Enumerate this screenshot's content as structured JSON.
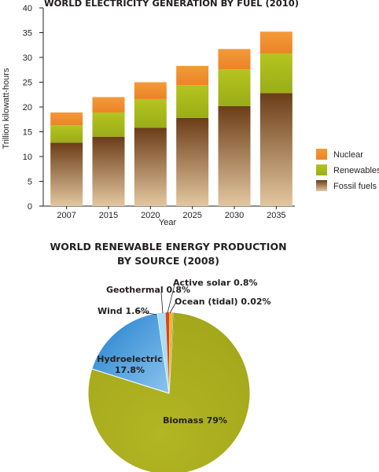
{
  "chart_data": [
    {
      "type": "bar",
      "stacked": true,
      "title": "WORLD ELECTRICITY GENERATION BY FUEL (2010)",
      "xlabel": "Year",
      "ylabel": "Trillion kilowatt-hours",
      "ylim": [
        0,
        40
      ],
      "yticks": [
        "0",
        "5",
        "10",
        "15",
        "20",
        "25",
        "30",
        "35",
        "40"
      ],
      "categories": [
        "2007",
        "2015",
        "2020",
        "2025",
        "2030",
        "2035"
      ],
      "series": [
        {
          "name": "Fossil fuels",
          "values": [
            12.8,
            14.0,
            15.8,
            17.8,
            20.2,
            22.8
          ],
          "color": "#7a4a21"
        },
        {
          "name": "Renewables",
          "values": [
            3.5,
            4.9,
            5.8,
            6.6,
            7.4,
            8.0
          ],
          "color": "#a5b51d"
        },
        {
          "name": "Nuclear",
          "values": [
            2.6,
            3.1,
            3.4,
            3.9,
            4.1,
            4.4
          ],
          "color": "#f08c2e"
        }
      ],
      "legend": {
        "position": "right",
        "items": [
          "Nuclear",
          "Renewables",
          "Fossil fuels"
        ]
      },
      "grid": false
    },
    {
      "type": "pie",
      "title_lines": [
        "WORLD RENEWABLE ENERGY PRODUCTION",
        "BY SOURCE (2008)"
      ],
      "slices": [
        {
          "name": "Biomass",
          "value": 79,
          "label": "Biomass 79%",
          "color": "#a9ad1e"
        },
        {
          "name": "Hydroelectric",
          "value": 17.8,
          "label_lines": [
            "Hydroelectric",
            "17.8%"
          ],
          "color": "#2b8fd6"
        },
        {
          "name": "Wind",
          "value": 1.6,
          "label": "Wind 1.6%",
          "color": "#a9def4"
        },
        {
          "name": "Geothermal",
          "value": 0.8,
          "label": "Geothermal 0.8%",
          "color": "#e2411e"
        },
        {
          "name": "Active solar",
          "value": 0.8,
          "label": "Active solar 0.8%",
          "color": "#f0b81e"
        },
        {
          "name": "Ocean (tidal)",
          "value": 0.02,
          "label": "Ocean (tidal) 0.02%",
          "color": "#2f7d3a"
        }
      ]
    }
  ]
}
